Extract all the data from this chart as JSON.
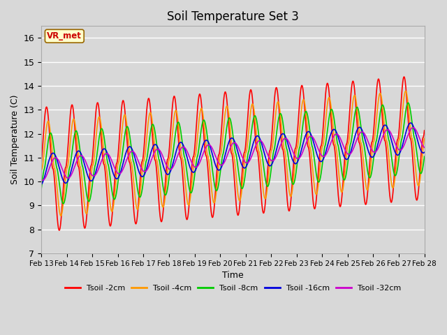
{
  "title": "Soil Temperature Set 3",
  "xlabel": "Time",
  "ylabel": "Soil Temperature (C)",
  "ylim": [
    7.0,
    16.5
  ],
  "yticks": [
    7.0,
    8.0,
    9.0,
    10.0,
    11.0,
    12.0,
    13.0,
    14.0,
    15.0,
    16.0
  ],
  "annotation_text": "VR_met",
  "colors": {
    "Tsoil -2cm": "#ff0000",
    "Tsoil -4cm": "#ff9900",
    "Tsoil -8cm": "#00cc00",
    "Tsoil -16cm": "#0000dd",
    "Tsoil -32cm": "#cc00cc"
  },
  "series_labels": [
    "Tsoil -2cm",
    "Tsoil -4cm",
    "Tsoil -8cm",
    "Tsoil -16cm",
    "Tsoil -32cm"
  ],
  "plot_bg_color": "#d8d8d8",
  "grid_color": "#ffffff",
  "fig_bg_color": "#d8d8d8",
  "linewidth": 1.2
}
